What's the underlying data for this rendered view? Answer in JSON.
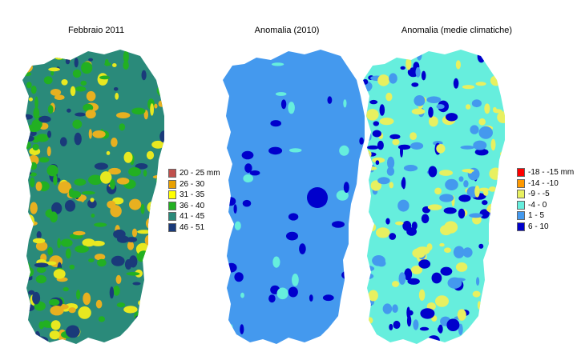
{
  "maps": [
    {
      "title": "Febbraio 2011",
      "base_color": "#2a8a7a",
      "patch_colors": [
        "#1a3a7a",
        "#22b022",
        "#22b022",
        "#e8e820",
        "#e8b020"
      ],
      "legend": [
        {
          "label": "20 - 25 mm",
          "color": "#c0504d"
        },
        {
          "label": "26 - 30",
          "color": "#e8a000"
        },
        {
          "label": "31 - 35",
          "color": "#ffff00"
        },
        {
          "label": "36 - 40",
          "color": "#22b022"
        },
        {
          "label": "41 - 45",
          "color": "#2a8a7a"
        },
        {
          "label": "46 - 51",
          "color": "#1a3a7a"
        }
      ]
    },
    {
      "title": "Anomalia (2010)",
      "base_color": "#4499ee",
      "patch_colors": [
        "#0000cc",
        "#66eedd"
      ],
      "legend": []
    },
    {
      "title": "Anomalia (medie climatiche)",
      "base_color": "#66eedd",
      "patch_colors": [
        "#4499ee",
        "#e8f060",
        "#0000cc"
      ],
      "legend": [
        {
          "label": "-18 - -15 mm",
          "color": "#ff0000"
        },
        {
          "label": "-14 - -10",
          "color": "#ff9900"
        },
        {
          "label": "-9 - -5",
          "color": "#e8f060"
        },
        {
          "label": "-4 - 0",
          "color": "#66eedd"
        },
        {
          "label": "1 - 5",
          "color": "#4499ee"
        },
        {
          "label": "6 - 10",
          "color": "#0000cc"
        }
      ]
    }
  ]
}
